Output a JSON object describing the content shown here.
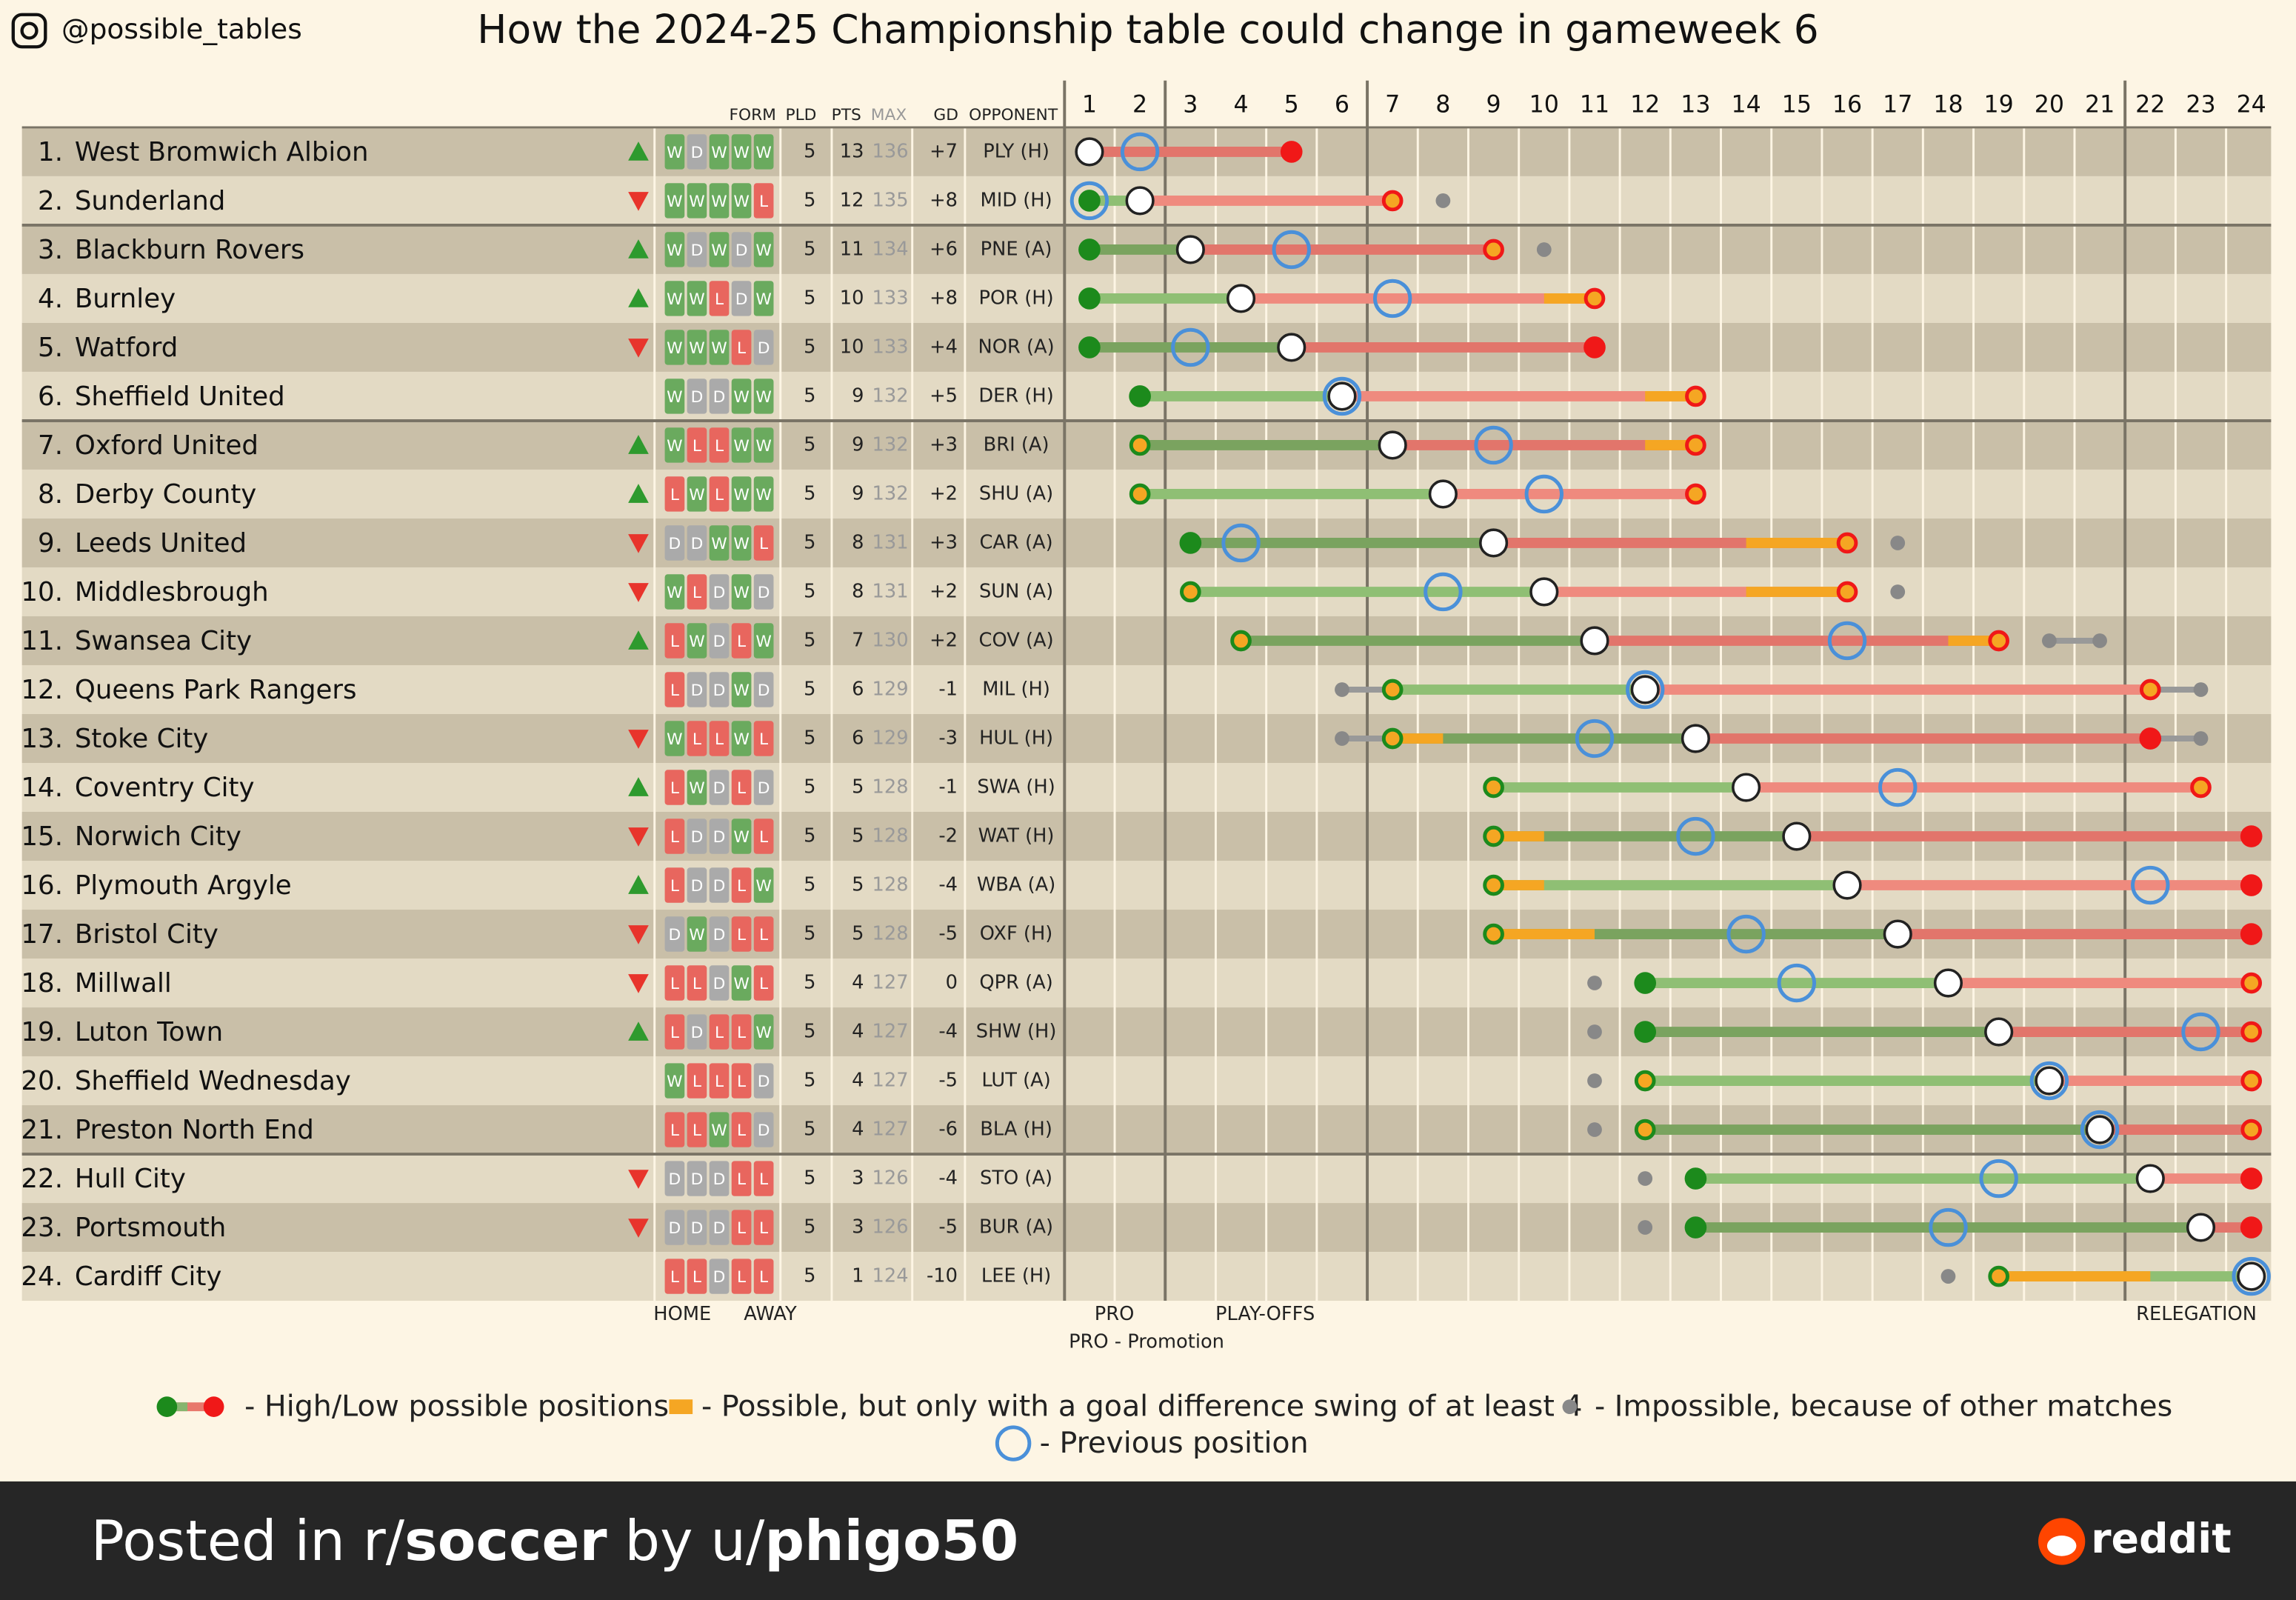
{
  "header": {
    "handle": "@possible_tables",
    "title": "How the 2024-25 Championship table could change in gameweek 6"
  },
  "headers": {
    "form": "FORM",
    "pld": "PLD",
    "pts": "PTS",
    "max": "MAX",
    "gd": "GD",
    "opponent": "OPPONENT"
  },
  "columns": [
    1,
    2,
    3,
    4,
    5,
    6,
    7,
    8,
    9,
    10,
    11,
    12,
    13,
    14,
    15,
    16,
    17,
    18,
    19,
    20,
    21,
    22,
    23,
    24
  ],
  "rows": [
    {
      "pos": "1.",
      "name": "West Bromwich Albion",
      "trend": "up",
      "form": [
        "W",
        "D",
        "W",
        "W",
        "W"
      ],
      "pld": 5,
      "pts": 13,
      "max": 136,
      "gd": "+7",
      "opponent": "PLY (H)",
      "best": 1,
      "worst": 5,
      "current": 1,
      "previous": 2,
      "best_gd": null,
      "worst_gd": null,
      "impossible": []
    },
    {
      "pos": "2.",
      "name": "Sunderland",
      "trend": "down",
      "form": [
        "W",
        "W",
        "W",
        "W",
        "L"
      ],
      "pld": 5,
      "pts": 12,
      "max": 135,
      "gd": "+8",
      "opponent": "MID (H)",
      "best": 1,
      "worst": 7,
      "current": 2,
      "previous": 1,
      "best_gd": null,
      "worst_gd": 7,
      "impossible": [
        8
      ]
    },
    {
      "pos": "3.",
      "name": "Blackburn Rovers",
      "trend": "up",
      "form": [
        "W",
        "D",
        "W",
        "D",
        "W"
      ],
      "pld": 5,
      "pts": 11,
      "max": 134,
      "gd": "+6",
      "opponent": "PNE (A)",
      "best": 1,
      "worst": 9,
      "current": 3,
      "previous": 5,
      "best_gd": null,
      "worst_gd": 9,
      "impossible": [
        10
      ]
    },
    {
      "pos": "4.",
      "name": "Burnley",
      "trend": "up",
      "form": [
        "W",
        "W",
        "L",
        "D",
        "W"
      ],
      "pld": 5,
      "pts": 10,
      "max": 133,
      "gd": "+8",
      "opponent": "POR (H)",
      "best": 1,
      "worst": 11,
      "current": 4,
      "previous": 7,
      "best_gd": null,
      "worst_gd": 10,
      "impossible": []
    },
    {
      "pos": "5.",
      "name": "Watford",
      "trend": "down",
      "form": [
        "W",
        "W",
        "W",
        "L",
        "D"
      ],
      "pld": 5,
      "pts": 10,
      "max": 133,
      "gd": "+4",
      "opponent": "NOR (A)",
      "best": 1,
      "worst": 11,
      "current": 5,
      "previous": 3,
      "best_gd": null,
      "worst_gd": null,
      "impossible": []
    },
    {
      "pos": "6.",
      "name": "Sheffield United",
      "trend": null,
      "form": [
        "W",
        "D",
        "D",
        "W",
        "W"
      ],
      "pld": 5,
      "pts": 9,
      "max": 132,
      "gd": "+5",
      "opponent": "DER (H)",
      "best": 2,
      "worst": 13,
      "current": 6,
      "previous": 6,
      "best_gd": null,
      "worst_gd": 12,
      "impossible": []
    },
    {
      "pos": "7.",
      "name": "Oxford United",
      "trend": "up",
      "form": [
        "W",
        "L",
        "L",
        "W",
        "W"
      ],
      "pld": 5,
      "pts": 9,
      "max": 132,
      "gd": "+3",
      "opponent": "BRI (A)",
      "best": 2,
      "worst": 13,
      "current": 7,
      "previous": 9,
      "best_gd": 2,
      "worst_gd": 12,
      "impossible": []
    },
    {
      "pos": "8.",
      "name": "Derby County",
      "trend": "up",
      "form": [
        "L",
        "W",
        "L",
        "W",
        "W"
      ],
      "pld": 5,
      "pts": 9,
      "max": 132,
      "gd": "+2",
      "opponent": "SHU (A)",
      "best": 2,
      "worst": 13,
      "current": 8,
      "previous": 10,
      "best_gd": 2,
      "worst_gd": 13,
      "impossible": []
    },
    {
      "pos": "9.",
      "name": "Leeds United",
      "trend": "down",
      "form": [
        "D",
        "D",
        "W",
        "W",
        "L"
      ],
      "pld": 5,
      "pts": 8,
      "max": 131,
      "gd": "+3",
      "opponent": "CAR (A)",
      "best": 3,
      "worst": 16,
      "current": 9,
      "previous": 4,
      "best_gd": null,
      "worst_gd": 14,
      "impossible": [
        17
      ]
    },
    {
      "pos": "10.",
      "name": "Middlesbrough",
      "trend": "down",
      "form": [
        "W",
        "L",
        "D",
        "W",
        "D"
      ],
      "pld": 5,
      "pts": 8,
      "max": 131,
      "gd": "+2",
      "opponent": "SUN (A)",
      "best": 3,
      "worst": 16,
      "current": 10,
      "previous": 8,
      "best_gd": 3,
      "worst_gd": 14,
      "impossible": [
        17
      ]
    },
    {
      "pos": "11.",
      "name": "Swansea City",
      "trend": "up",
      "form": [
        "L",
        "W",
        "D",
        "L",
        "W"
      ],
      "pld": 5,
      "pts": 7,
      "max": 130,
      "gd": "+2",
      "opponent": "COV (A)",
      "best": 4,
      "worst": 19,
      "current": 11,
      "previous": 16,
      "best_gd": 4,
      "worst_gd": 18,
      "impossible": [
        20,
        21
      ]
    },
    {
      "pos": "12.",
      "name": "Queens Park Rangers",
      "trend": null,
      "form": [
        "L",
        "D",
        "D",
        "W",
        "D"
      ],
      "pld": 5,
      "pts": 6,
      "max": 129,
      "gd": "-1",
      "opponent": "MIL (H)",
      "best": 7,
      "worst": 22,
      "current": 12,
      "previous": 12,
      "best_gd": 7,
      "worst_gd": 22,
      "impossible": [
        6,
        23
      ]
    },
    {
      "pos": "13.",
      "name": "Stoke City",
      "trend": "down",
      "form": [
        "W",
        "L",
        "L",
        "W",
        "L"
      ],
      "pld": 5,
      "pts": 6,
      "max": 129,
      "gd": "-3",
      "opponent": "HUL (H)",
      "best": 7,
      "worst": 22,
      "current": 13,
      "previous": 11,
      "best_gd": 8,
      "worst_gd": null,
      "impossible": [
        6,
        23
      ]
    },
    {
      "pos": "14.",
      "name": "Coventry City",
      "trend": "up",
      "form": [
        "L",
        "W",
        "D",
        "L",
        "D"
      ],
      "pld": 5,
      "pts": 5,
      "max": 128,
      "gd": "-1",
      "opponent": "SWA (H)",
      "best": 9,
      "worst": 23,
      "current": 14,
      "previous": 17,
      "best_gd": 9,
      "worst_gd": 23,
      "impossible": []
    },
    {
      "pos": "15.",
      "name": "Norwich City",
      "trend": "down",
      "form": [
        "L",
        "D",
        "D",
        "W",
        "L"
      ],
      "pld": 5,
      "pts": 5,
      "max": 128,
      "gd": "-2",
      "opponent": "WAT (H)",
      "best": 9,
      "worst": 24,
      "current": 15,
      "previous": 13,
      "best_gd": 10,
      "worst_gd": null,
      "impossible": []
    },
    {
      "pos": "16.",
      "name": "Plymouth Argyle",
      "trend": "up",
      "form": [
        "L",
        "D",
        "D",
        "L",
        "W"
      ],
      "pld": 5,
      "pts": 5,
      "max": 128,
      "gd": "-4",
      "opponent": "WBA (A)",
      "best": 9,
      "worst": 24,
      "current": 16,
      "previous": 22,
      "best_gd": 10,
      "worst_gd": null,
      "impossible": []
    },
    {
      "pos": "17.",
      "name": "Bristol City",
      "trend": "down",
      "form": [
        "D",
        "W",
        "D",
        "L",
        "L"
      ],
      "pld": 5,
      "pts": 5,
      "max": 128,
      "gd": "-5",
      "opponent": "OXF (H)",
      "best": 9,
      "worst": 24,
      "current": 17,
      "previous": 14,
      "best_gd": 11,
      "worst_gd": null,
      "impossible": []
    },
    {
      "pos": "18.",
      "name": "Millwall",
      "trend": "down",
      "form": [
        "L",
        "L",
        "D",
        "W",
        "L"
      ],
      "pld": 5,
      "pts": 4,
      "max": 127,
      "gd": "0",
      "opponent": "QPR (A)",
      "best": 12,
      "worst": 24,
      "current": 18,
      "previous": 15,
      "best_gd": null,
      "worst_gd": 24,
      "impossible": [
        11
      ]
    },
    {
      "pos": "19.",
      "name": "Luton Town",
      "trend": "up",
      "form": [
        "L",
        "D",
        "L",
        "L",
        "W"
      ],
      "pld": 5,
      "pts": 4,
      "max": 127,
      "gd": "-4",
      "opponent": "SHW (H)",
      "best": 12,
      "worst": 24,
      "current": 19,
      "previous": 23,
      "best_gd": null,
      "worst_gd": 24,
      "impossible": [
        11
      ]
    },
    {
      "pos": "20.",
      "name": "Sheffield Wednesday",
      "trend": null,
      "form": [
        "W",
        "L",
        "L",
        "L",
        "D"
      ],
      "pld": 5,
      "pts": 4,
      "max": 127,
      "gd": "-5",
      "opponent": "LUT (A)",
      "best": 12,
      "worst": 24,
      "current": 20,
      "previous": 20,
      "best_gd": 12,
      "worst_gd": 24,
      "impossible": [
        11
      ]
    },
    {
      "pos": "21.",
      "name": "Preston North End",
      "trend": null,
      "form": [
        "L",
        "L",
        "W",
        "L",
        "D"
      ],
      "pld": 5,
      "pts": 4,
      "max": 127,
      "gd": "-6",
      "opponent": "BLA (H)",
      "best": 12,
      "worst": 24,
      "current": 21,
      "previous": 21,
      "best_gd": 12,
      "worst_gd": 24,
      "impossible": [
        11
      ]
    },
    {
      "pos": "22.",
      "name": "Hull City",
      "trend": "down",
      "form": [
        "D",
        "D",
        "D",
        "L",
        "L"
      ],
      "pld": 5,
      "pts": 3,
      "max": 126,
      "gd": "-4",
      "opponent": "STO (A)",
      "best": 13,
      "worst": 24,
      "current": 22,
      "previous": 19,
      "best_gd": null,
      "worst_gd": null,
      "impossible": [
        12
      ]
    },
    {
      "pos": "23.",
      "name": "Portsmouth",
      "trend": "down",
      "form": [
        "D",
        "D",
        "D",
        "L",
        "L"
      ],
      "pld": 5,
      "pts": 3,
      "max": 126,
      "gd": "-5",
      "opponent": "BUR (A)",
      "best": 13,
      "worst": 24,
      "current": 23,
      "previous": 18,
      "best_gd": null,
      "worst_gd": null,
      "impossible": [
        12
      ]
    },
    {
      "pos": "24.",
      "name": "Cardiff City",
      "trend": null,
      "form": [
        "L",
        "L",
        "D",
        "L",
        "L"
      ],
      "pld": 5,
      "pts": 1,
      "max": 124,
      "gd": "-10",
      "opponent": "LEE (H)",
      "best": 19,
      "worst": 24,
      "current": 24,
      "previous": 24,
      "best_gd": 22,
      "worst_gd": null,
      "impossible": [
        18
      ]
    }
  ],
  "notes": {
    "home": "HOME",
    "away": "AWAY",
    "pro": "PRO",
    "playoffs": "PLAY-OFFS",
    "pro_def": "PRO - Promotion",
    "relegation": "RELEGATION"
  },
  "legend": [
    "- High/Low possible positions",
    "- Possible, but only with a goal difference swing of at least 4",
    "- Impossible, because of other matches",
    "- Previous position"
  ],
  "footer": {
    "prefix": "Posted in r/",
    "sub": "soccer",
    "mid": " by u/",
    "user": "phigo50",
    "brand": "reddit"
  }
}
